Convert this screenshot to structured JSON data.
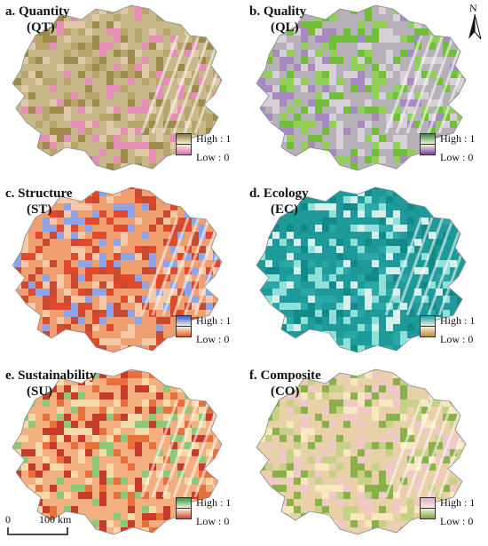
{
  "panels": [
    {
      "id": "qt",
      "title": "a. Quantity",
      "abbr": "(QT)",
      "legend": {
        "high": "High : 1",
        "low": "Low : 0",
        "high_color": "#8a7a2e",
        "low_color": "#e06aa8"
      },
      "base_color": "#c9b98a",
      "speck_colors": [
        "#b7a56a",
        "#e0c9a8",
        "#9c8a4a",
        "#e58fb8"
      ]
    },
    {
      "id": "ql",
      "title": "b. Quality",
      "abbr": "(QL)",
      "legend": {
        "high": "High : 1",
        "low": "Low : 0",
        "high_color": "#2e8b2e",
        "low_color": "#7a3fa0"
      },
      "base_color": "#b8b0b8",
      "speck_colors": [
        "#8fcf5a",
        "#6fbf3a",
        "#a98ac0",
        "#d8d0d8"
      ]
    },
    {
      "id": "st",
      "title": "c. Structure",
      "abbr": "(ST)",
      "legend": {
        "high": "High : 1",
        "low": "Low : 0",
        "high_color": "#3a5bd0",
        "low_color": "#e8572a"
      },
      "base_color": "#f0a070",
      "speck_colors": [
        "#e04a2a",
        "#f5c8a8",
        "#8ea4e8",
        "#c84a30"
      ]
    },
    {
      "id": "ec",
      "title": "d. Ecology",
      "abbr": "(EC)",
      "legend": {
        "high": "High : 1",
        "low": "Low : 0",
        "high_color": "#1aa3a3",
        "low_color": "#c08a3a"
      },
      "base_color": "#1f9a9a",
      "speck_colors": [
        "#138a8a",
        "#8fe0d8",
        "#2aa8a8",
        "#d8f0ec"
      ]
    },
    {
      "id": "su",
      "title": "e. Sustainability",
      "abbr": "(SU)",
      "legend": {
        "high": "High : 1",
        "low": "Low : 0",
        "high_color": "#2a9a3a",
        "low_color": "#d8452a"
      },
      "base_color": "#f2b080",
      "speck_colors": [
        "#e8703a",
        "#f8d8a8",
        "#8fc878",
        "#c83a2a"
      ]
    },
    {
      "id": "co",
      "title": "f. Composite",
      "abbr": "(CO)",
      "legend": {
        "high": "High : 1",
        "low": "Low : 0",
        "high_color": "#e0a8c8",
        "low_color": "#7aa83a"
      },
      "base_color": "#e8d0a8",
      "speck_colors": [
        "#8ab04a",
        "#f0c8c8",
        "#c8d088",
        "#f8e8c0"
      ]
    }
  ],
  "north_label": "N",
  "scale": {
    "zero": "0",
    "distance": "100 km"
  }
}
